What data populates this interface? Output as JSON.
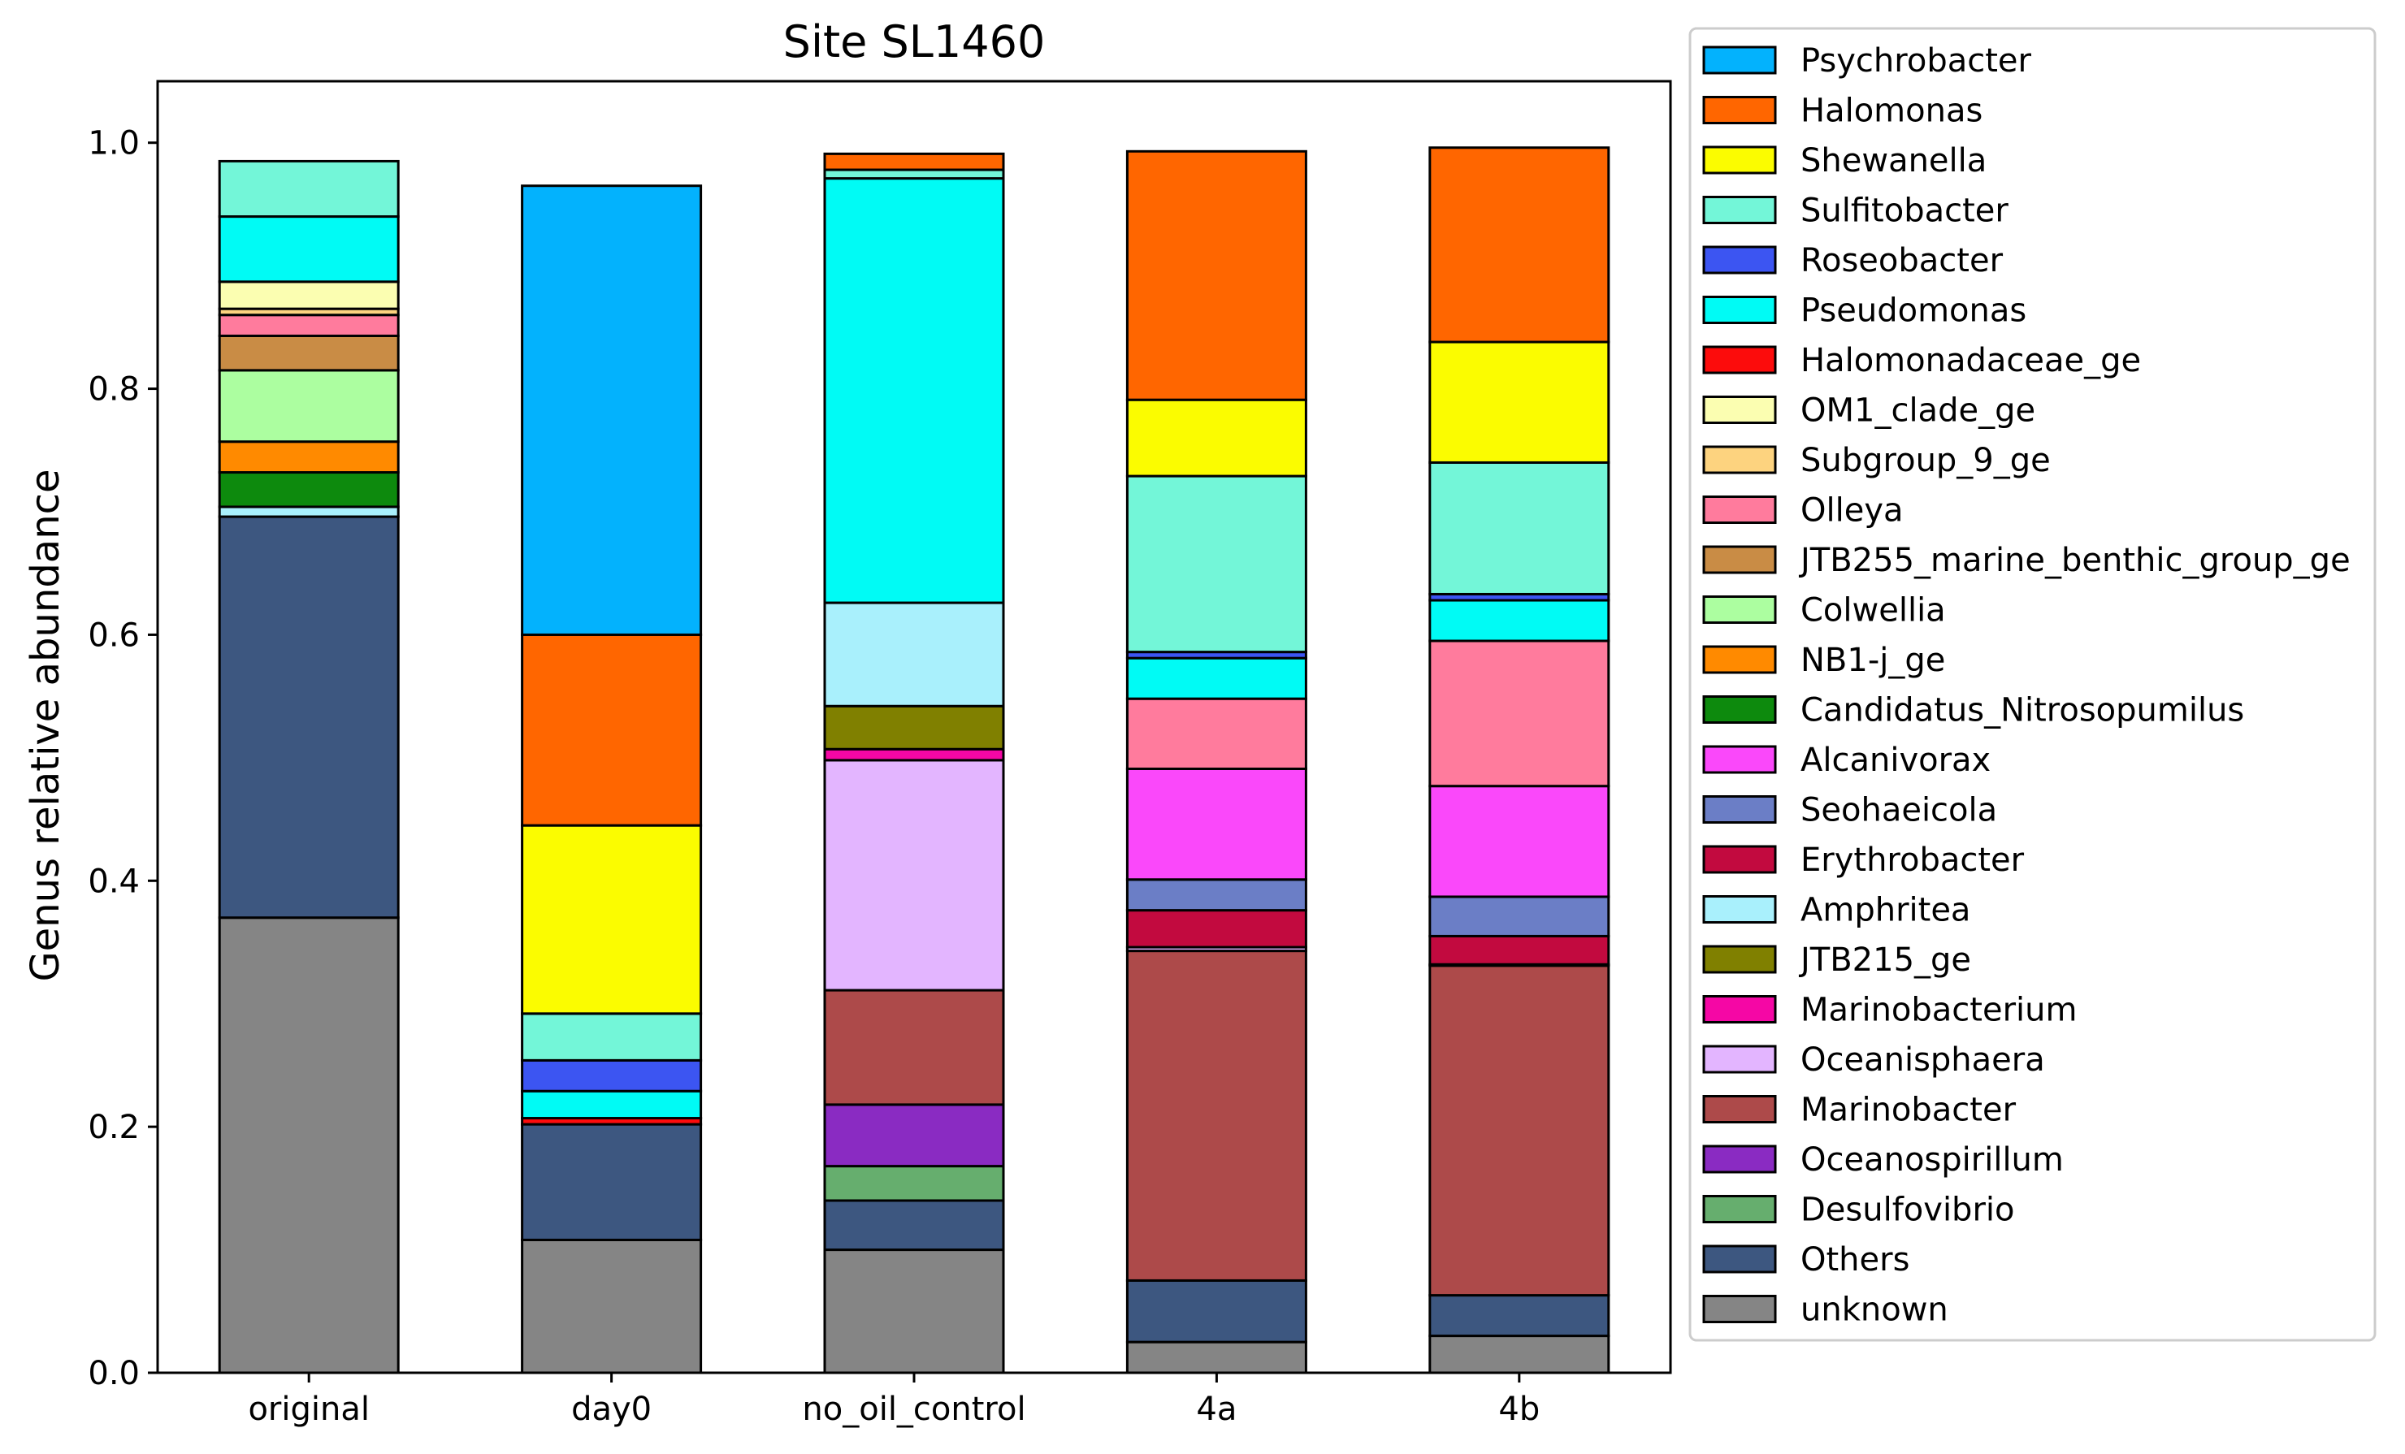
{
  "chart_data": {
    "type": "bar",
    "stacked": true,
    "title": "Site SL1460",
    "xlabel": "",
    "ylabel": "Genus relative abundance",
    "ylim": [
      0,
      1.05
    ],
    "yticks": [
      "0.0",
      "0.2",
      "0.4",
      "0.6",
      "0.8",
      "1.0"
    ],
    "categories": [
      "original",
      "day0",
      "no_oil_control",
      "4a",
      "4b"
    ],
    "legend_position": "right, outside plot",
    "series": [
      {
        "name": "unknown",
        "color": "#858585",
        "values": [
          0.37,
          0.108,
          0.1,
          0.025,
          0.03
        ]
      },
      {
        "name": "Others",
        "color": "#3d5780",
        "values": [
          0.326,
          0.094,
          0.04,
          0.05,
          0.033
        ]
      },
      {
        "name": "Desulfovibrio",
        "color": "#66ae6e",
        "values": [
          0.0,
          0.0,
          0.028,
          0.0,
          0.0
        ]
      },
      {
        "name": "Oceanospirillum",
        "color": "#8a2bc2",
        "values": [
          0.0,
          0.0,
          0.05,
          0.0,
          0.0
        ]
      },
      {
        "name": "Marinobacter",
        "color": "#ad4a4a",
        "values": [
          0.0,
          0.0,
          0.093,
          0.268,
          0.268
        ]
      },
      {
        "name": "Oceanisphaera",
        "color": "#e3b5ff",
        "values": [
          0.0,
          0.0,
          0.187,
          0.003,
          0.001
        ]
      },
      {
        "name": "Marinobacterium",
        "color": "#f507a5",
        "values": [
          0.0,
          0.0,
          0.009,
          0.0,
          0.0
        ]
      },
      {
        "name": "JTB215_ge",
        "color": "#808000",
        "values": [
          0.0,
          0.0,
          0.035,
          0.0,
          0.0
        ]
      },
      {
        "name": "Amphritea",
        "color": "#a9f0fc",
        "values": [
          0.008,
          0.0,
          0.084,
          0.0,
          0.0
        ]
      },
      {
        "name": "Erythrobacter",
        "color": "#c20a3f",
        "values": [
          0.0,
          0.0,
          0.0,
          0.03,
          0.023
        ]
      },
      {
        "name": "Seohaeicola",
        "color": "#6b7ec6",
        "values": [
          0.0,
          0.0,
          0.0,
          0.025,
          0.032
        ]
      },
      {
        "name": "Alcanivorax",
        "color": "#fa48fa",
        "values": [
          0.0,
          0.0,
          0.0,
          0.09,
          0.09
        ]
      },
      {
        "name": "Candidatus_Nitrosopumilus",
        "color": "#0d8a0d",
        "values": [
          0.028,
          0.0,
          0.0,
          0.0,
          0.0
        ]
      },
      {
        "name": "NB1-j_ge",
        "color": "#ff8a00",
        "values": [
          0.025,
          0.0,
          0.0,
          0.0,
          0.0
        ]
      },
      {
        "name": "Colwellia",
        "color": "#acfea0",
        "values": [
          0.058,
          0.0,
          0.0,
          0.0,
          0.0
        ]
      },
      {
        "name": "JTB255_marine_benthic_group_ge",
        "color": "#c98c45",
        "values": [
          0.028,
          0.0,
          0.0,
          0.0,
          0.0
        ]
      },
      {
        "name": "Olleya",
        "color": "#ff7b9d",
        "values": [
          0.017,
          0.0,
          0.0,
          0.057,
          0.118
        ]
      },
      {
        "name": "Subgroup_9_ge",
        "color": "#fdd37f",
        "values": [
          0.005,
          0.0,
          0.0,
          0.0,
          0.0
        ]
      },
      {
        "name": "OM1_clade_ge",
        "color": "#fbfeb1",
        "values": [
          0.022,
          0.0,
          0.0,
          0.0,
          0.0
        ]
      },
      {
        "name": "Halomonadaceae_ge",
        "color": "#fc0c0c",
        "values": [
          0.0,
          0.005,
          0.0,
          0.0,
          0.0
        ]
      },
      {
        "name": "Pseudomonas",
        "color": "#00fbf5",
        "values": [
          0.053,
          0.022,
          0.345,
          0.033,
          0.033
        ]
      },
      {
        "name": "Roseobacter",
        "color": "#3c55f2",
        "values": [
          0.0,
          0.025,
          0.0,
          0.005,
          0.005
        ]
      },
      {
        "name": "Sulfitobacter",
        "color": "#73f6d8",
        "values": [
          0.045,
          0.038,
          0.007,
          0.143,
          0.107
        ]
      },
      {
        "name": "Shewanella",
        "color": "#fbfc00",
        "values": [
          0.0,
          0.153,
          0.0,
          0.062,
          0.098
        ]
      },
      {
        "name": "Halomonas",
        "color": "#ff6600",
        "values": [
          0.0,
          0.155,
          0.013,
          0.202,
          0.158
        ]
      },
      {
        "name": "Psychrobacter",
        "color": "#03b2fd",
        "values": [
          0.0,
          0.365,
          0.0,
          0.0,
          0.0
        ]
      }
    ],
    "legend_order": [
      "Psychrobacter",
      "Halomonas",
      "Shewanella",
      "Sulfitobacter",
      "Roseobacter",
      "Pseudomonas",
      "Halomonadaceae_ge",
      "OM1_clade_ge",
      "Subgroup_9_ge",
      "Olleya",
      "JTB255_marine_benthic_group_ge",
      "Colwellia",
      "NB1-j_ge",
      "Candidatus_Nitrosopumilus",
      "Alcanivorax",
      "Seohaeicola",
      "Erythrobacter",
      "Amphritea",
      "JTB215_ge",
      "Marinobacterium",
      "Oceanisphaera",
      "Marinobacter",
      "Oceanospirillum",
      "Desulfovibrio",
      "Others",
      "unknown"
    ]
  }
}
